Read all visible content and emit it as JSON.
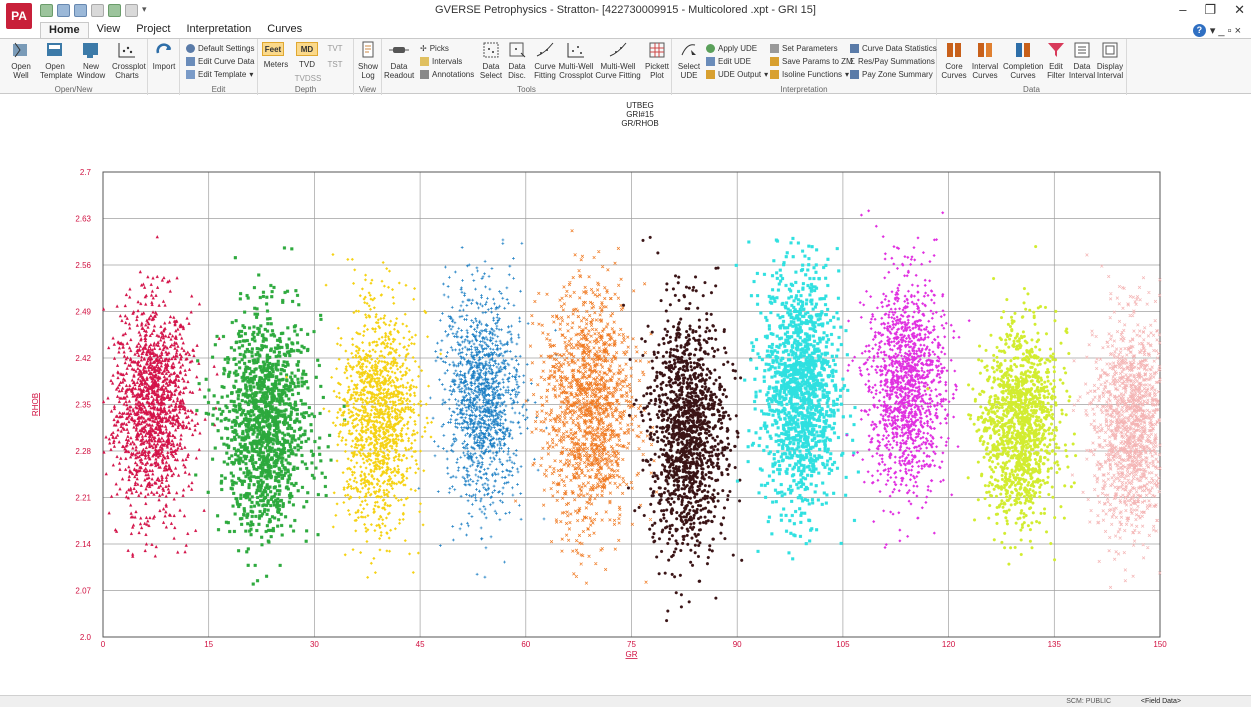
{
  "app": {
    "logo_text": "PA",
    "window_title": "GVERSE Petrophysics - Stratton- [422730009915 - Multicolored .xpt - GRI 15]",
    "window_controls": {
      "minimize": "–",
      "restore": "❐",
      "close": "✕"
    }
  },
  "ribbon": {
    "tabs": [
      {
        "label": "Home"
      },
      {
        "label": "View"
      },
      {
        "label": "Project"
      },
      {
        "label": "Interpretation"
      },
      {
        "label": "Curves"
      }
    ],
    "groups": {
      "open_new": {
        "label": "Open/New",
        "open_well": "Open\nWell",
        "open_template": "Open\nTemplate",
        "new_window": "New\nWindow",
        "crossplot_charts": "Crossplot\nCharts"
      },
      "import": {
        "label": "Import"
      },
      "edit": {
        "label": "Edit",
        "default_settings": "Default Settings",
        "edit_curve_data": "Edit Curve Data",
        "edit_template": "Edit Template"
      },
      "depth": {
        "label": "Depth",
        "feet": "Feet",
        "meters": "Meters",
        "md": "MD",
        "tvd": "TVD",
        "tvdss": "TVDSS",
        "tvt": "TVT",
        "tst": "TST"
      },
      "view": {
        "label": "View",
        "show_log": "Show\nLog"
      },
      "tools": {
        "label": "Tools",
        "data_readout": "Data\nReadout",
        "picks": "Picks",
        "intervals": "Intervals",
        "annotations": "Annotations",
        "data_select": "Data\nSelect",
        "data_disc": "Data\nDisc.",
        "curve_fitting": "Curve\nFitting",
        "multi_well_crossplot": "Multi-Well\nCrossplot",
        "multi_well_curve_fitting": "Multi-Well\nCurve Fitting",
        "pickett_plot": "Pickett\nPlot"
      },
      "interpretation": {
        "label": "Interpretation",
        "select_ude": "Select\nUDE",
        "apply_ude": "Apply UDE",
        "edit_ude": "Edit UDE",
        "ude_output": "UDE Output",
        "set_parameters": "Set Parameters",
        "save_params_to_zm": "Save Params to ZM",
        "isoline_functions": "Isoline Functions",
        "curve_data_statistics": "Curve Data Statistics",
        "res_pay_summations": "Res/Pay Summations",
        "pay_zone_summary": "Pay Zone Summary"
      },
      "data": {
        "label": "Data",
        "core_curves": "Core\nCurves",
        "interval_curves": "Interval\nCurves",
        "completion_curves": "Completion\nCurves",
        "edit_filter": "Edit\nFilter",
        "data_interval": "Data\nInterval",
        "display_interval": "Display\nInterval"
      }
    }
  },
  "plot": {
    "title_lines": [
      "UTBEG",
      "GRI#15",
      "GR/RHOB"
    ]
  },
  "chart_data": {
    "type": "scatter",
    "xlabel": "GR",
    "ylabel": "RHOB",
    "xlim": [
      0,
      150
    ],
    "ylim": [
      2.0,
      2.7
    ],
    "x_ticks": [
      0,
      15,
      30,
      45,
      60,
      75,
      90,
      105,
      120,
      135,
      150
    ],
    "y_ticks": [
      2.0,
      2.07,
      2.14,
      2.21,
      2.28,
      2.35,
      2.42,
      2.49,
      2.56,
      2.63,
      2.7
    ],
    "y_tick_labels": [
      "2.0",
      "2.07",
      "2.14",
      "2.21",
      "2.28",
      "2.35",
      "2.42",
      "2.49",
      "2.56",
      "2.63",
      "2.7"
    ],
    "grid": true,
    "series": [
      {
        "color": "#d4144a",
        "marker": "triangle",
        "x_center": 7,
        "x_spread": 3,
        "y_center": 2.35,
        "y_spread": 0.08,
        "y_min": 2.12,
        "y_max": 2.66
      },
      {
        "color": "#2eaa3e",
        "marker": "square",
        "x_center": 23,
        "x_spread": 3.5,
        "y_center": 2.32,
        "y_spread": 0.08,
        "y_min": 2.03,
        "y_max": 2.6
      },
      {
        "color": "#f5d214",
        "marker": "diamond",
        "x_center": 39,
        "x_spread": 3,
        "y_center": 2.33,
        "y_spread": 0.08,
        "y_min": 2.01,
        "y_max": 2.58
      },
      {
        "color": "#1c7fc4",
        "marker": "plus",
        "x_center": 54,
        "x_spread": 3,
        "y_center": 2.36,
        "y_spread": 0.08,
        "y_min": 2.09,
        "y_max": 2.65
      },
      {
        "color": "#f07a22",
        "marker": "cross",
        "x_center": 69,
        "x_spread": 3.5,
        "y_center": 2.34,
        "y_spread": 0.09,
        "y_min": 2.08,
        "y_max": 2.64
      },
      {
        "color": "#3a1416",
        "marker": "circle",
        "x_center": 83,
        "x_spread": 3,
        "y_center": 2.31,
        "y_spread": 0.09,
        "y_min": 2.02,
        "y_max": 2.61
      },
      {
        "color": "#30e0e0",
        "marker": "square",
        "x_center": 99,
        "x_spread": 3,
        "y_center": 2.37,
        "y_spread": 0.09,
        "y_min": 2.05,
        "y_max": 2.6
      },
      {
        "color": "#e030e0",
        "marker": "diamond",
        "x_center": 114,
        "x_spread": 3,
        "y_center": 2.38,
        "y_spread": 0.08,
        "y_min": 2.13,
        "y_max": 2.65
      },
      {
        "color": "#d2ec30",
        "marker": "circle",
        "x_center": 130,
        "x_spread": 3,
        "y_center": 2.32,
        "y_spread": 0.07,
        "y_min": 2.07,
        "y_max": 2.64
      },
      {
        "color": "#f4b4b4",
        "marker": "cross",
        "x_center": 146,
        "x_spread": 3,
        "y_center": 2.32,
        "y_spread": 0.08,
        "y_min": 2.07,
        "y_max": 2.58
      }
    ]
  },
  "status": {
    "left": "SCM: PUBLIC",
    "right": "<Field Data>"
  }
}
